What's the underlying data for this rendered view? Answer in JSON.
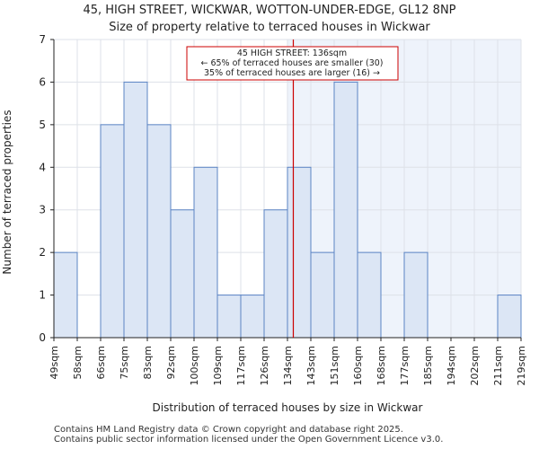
{
  "title_line1": "45, HIGH STREET, WICKWAR, WOTTON-UNDER-EDGE, GL12 8NP",
  "title_line2": "Size of property relative to terraced houses in Wickwar",
  "footer_line1": "Contains HM Land Registry data © Crown copyright and database right 2025.",
  "footer_line2": "Contains public sector information licensed under the Open Government Licence v3.0.",
  "colors": {
    "bar_fill": "#dce6f5",
    "bar_stroke": "#5b84c4",
    "highlight_bg": "#eef3fb",
    "marker_line": "#cc0000",
    "annotation_border": "#cc0000",
    "axis": "#222222"
  },
  "chart_data": {
    "type": "bar",
    "title": "Size of property relative to terraced houses in Wickwar",
    "xlabel": "Distribution of terraced houses by size in Wickwar",
    "ylabel": "Number of terraced properties",
    "ylim": [
      0,
      7
    ],
    "yticks": [
      0,
      1,
      2,
      3,
      4,
      5,
      6,
      7
    ],
    "bin_edges": [
      "49sqm",
      "58sqm",
      "66sqm",
      "75sqm",
      "83sqm",
      "92sqm",
      "100sqm",
      "109sqm",
      "117sqm",
      "126sqm",
      "134sqm",
      "143sqm",
      "151sqm",
      "160sqm",
      "168sqm",
      "177sqm",
      "185sqm",
      "194sqm",
      "202sqm",
      "211sqm",
      "219sqm"
    ],
    "values": [
      2,
      0,
      5,
      6,
      5,
      3,
      4,
      1,
      1,
      3,
      4,
      2,
      6,
      2,
      0,
      2,
      0,
      0,
      0,
      1
    ],
    "subject_size_sqm": 136,
    "marker_bin_position": 10.25,
    "highlight_from_bin": 10,
    "annotation": {
      "line1": "45 HIGH STREET: 136sqm",
      "line2": "← 65% of terraced houses are smaller (30)",
      "line3": "35% of terraced houses are larger (16) →"
    },
    "grid": true
  }
}
